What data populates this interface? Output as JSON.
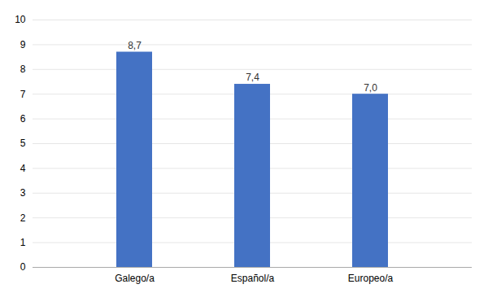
{
  "chart_data": {
    "type": "bar",
    "categories": [
      "Galego/a",
      "Español/a",
      "Europeo/a"
    ],
    "values": [
      8.7,
      7.4,
      7.0
    ],
    "value_labels": [
      "8,7",
      "7,4",
      "7,0"
    ],
    "data_labels": true,
    "color": "#4472C4",
    "ylim": [
      0,
      10
    ],
    "yticks": [
      0,
      1,
      2,
      3,
      4,
      5,
      6,
      7,
      8,
      9,
      10
    ],
    "grid": true
  }
}
